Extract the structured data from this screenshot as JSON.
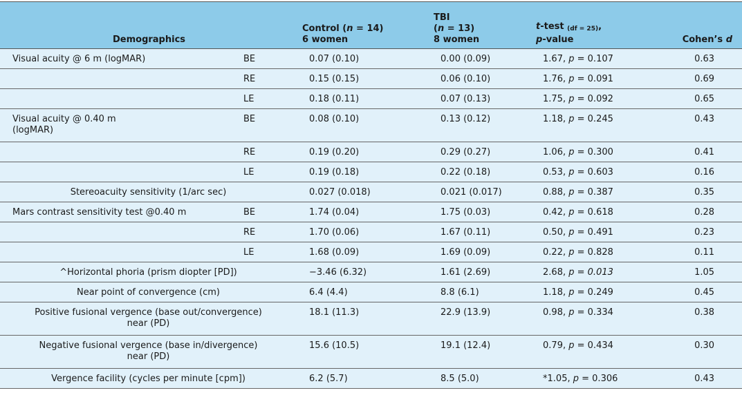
{
  "header": {
    "demographics": "Demographics",
    "control_line1": "Control",
    "control_n": "n",
    "control_eq": " = 14)",
    "control_line2": "6 women",
    "tbi_line1": "TBI",
    "tbi_n": "n",
    "tbi_eq": " = 13)",
    "tbi_line3": "8 women",
    "ttest_t": "t",
    "ttest_rest": "-test",
    "ttest_df": "(df = 25)",
    "ttest_p": "p",
    "ttest_value": "-value",
    "cohen": "Cohen’s",
    "cohen_d": "d"
  },
  "rows": [
    {
      "label": "Visual acuity @ 6 m (logMAR)",
      "eye": "BE",
      "control": "0.07 (0.10)",
      "tbi": "0.00 (0.09)",
      "t": "1.67, ",
      "p": "= 0.107",
      "d": "0.63"
    },
    {
      "label": "",
      "eye": "RE",
      "control": "0.15 (0.15)",
      "tbi": "0.06 (0.10)",
      "t": "1.76, ",
      "p": "= 0.091",
      "d": "0.69"
    },
    {
      "label": "",
      "eye": "LE",
      "control": "0.18 (0.11)",
      "tbi": "0.07 (0.13)",
      "t": "1.75, ",
      "p": "= 0.092",
      "d": "0.65"
    },
    {
      "label": "Visual acuity @ 0.40 m (logMAR)",
      "eye": "BE",
      "control": "0.08 (0.10)",
      "tbi": "0.13 (0.12)",
      "t": "1.18, ",
      "p": "= 0.245",
      "d": "0.43"
    },
    {
      "label": "",
      "eye": "RE",
      "control": "0.19 (0.20)",
      "tbi": "0.29 (0.27)",
      "t": "1.06, ",
      "p": "= 0.300",
      "d": "0.41"
    },
    {
      "label": "",
      "eye": "LE",
      "control": "0.19 (0.18)",
      "tbi": "0.22 (0.18)",
      "t": "0.53, ",
      "p": "= 0.603",
      "d": "0.16"
    },
    {
      "label": "Stereoacuity sensitivity (1/arc sec)",
      "eye": "",
      "control": "0.027 (0.018)",
      "tbi": "0.021 (0.017)",
      "t": "0.88, ",
      "p": "= 0.387",
      "d": "0.35"
    },
    {
      "label": "Mars contrast sensitivity test @0.40 m",
      "eye": "BE",
      "control": "1.74 (0.04)",
      "tbi": "1.75 (0.03)",
      "t": "0.42, ",
      "p": "= 0.618",
      "d": "0.28"
    },
    {
      "label": "",
      "eye": "RE",
      "control": "1.70 (0.06)",
      "tbi": "1.67 (0.11)",
      "t": "0.50, ",
      "p": "= 0.491",
      "d": "0.23"
    },
    {
      "label": "",
      "eye": "LE",
      "control": "1.68 (0.09)",
      "tbi": "1.69 (0.09)",
      "t": "0.22, ",
      "p": "= 0.828",
      "d": "0.11"
    },
    {
      "label": "^Horizontal phoria (prism diopter [PD])",
      "eye": "",
      "control": "−3.46 (6.32)",
      "tbi": "1.61 (2.69)",
      "t": "2.68, ",
      "p": "= 0.013",
      "d": "1.05"
    },
    {
      "label": "Near point of convergence (cm)",
      "eye": "",
      "control": "6.4 (4.4)",
      "tbi": "8.8 (6.1)",
      "t": "1.18, ",
      "p": "= 0.249",
      "d": "0.45"
    },
    {
      "label": "Positive fusional vergence (base out/convergence) near (PD)",
      "eye": "",
      "control": "18.1 (11.3)",
      "tbi": "22.9 (13.9)",
      "t": "0.98, ",
      "p": "= 0.334",
      "d": "0.38"
    },
    {
      "label": "Negative fusional vergence (base in/divergence) near (PD)",
      "eye": "",
      "control": "15.6 (10.5)",
      "tbi": "19.1 (12.4)",
      "t": "0.79, ",
      "p": "= 0.434",
      "d": "0.30"
    },
    {
      "label": "Vergence facility (cycles per minute [cpm])",
      "eye": "",
      "control": "6.2 (5.7)",
      "tbi": "8.5 (5.0)",
      "t": "*1.05, ",
      "p": "= 0.306",
      "d": "0.43"
    }
  ],
  "p_symbol": "p"
}
